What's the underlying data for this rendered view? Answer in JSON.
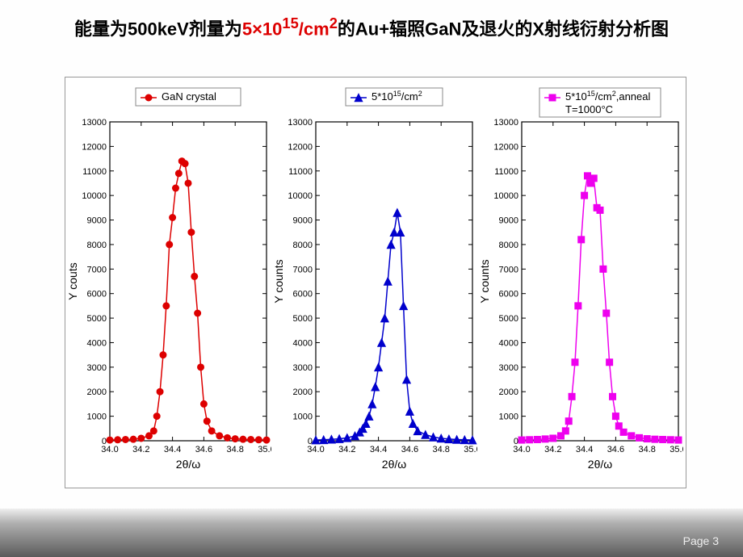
{
  "title": {
    "parts": [
      {
        "t": "能量为500keV剂量为",
        "emph": false
      },
      {
        "t": "5×10",
        "emph": true
      },
      {
        "t": "15",
        "emph": true,
        "sup": true
      },
      {
        "t": "/cm",
        "emph": true
      },
      {
        "t": "2",
        "emph": true,
        "sup": true
      },
      {
        "t": "的Au+辐照GaN及退火的X射线衍射分析图",
        "emph": false
      }
    ]
  },
  "footer": {
    "page": "Page 3"
  },
  "chart": {
    "type": "line-scatter-multi",
    "panels": [
      {
        "legend": [
          "GaN crystal"
        ],
        "ylabel": "Y couts",
        "xlabel": "2θ/ω",
        "color": "#dd0000",
        "marker": "circle",
        "ylim": [
          0,
          13000
        ],
        "ystep": 1000,
        "xlim": [
          34.0,
          35.0
        ],
        "xstep": 0.2,
        "points": [
          [
            34.0,
            30
          ],
          [
            34.05,
            40
          ],
          [
            34.1,
            50
          ],
          [
            34.15,
            60
          ],
          [
            34.2,
            100
          ],
          [
            34.25,
            200
          ],
          [
            34.28,
            400
          ],
          [
            34.3,
            1000
          ],
          [
            34.32,
            2000
          ],
          [
            34.34,
            3500
          ],
          [
            34.36,
            5500
          ],
          [
            34.38,
            8000
          ],
          [
            34.4,
            9100
          ],
          [
            34.42,
            10300
          ],
          [
            34.44,
            10900
          ],
          [
            34.46,
            11400
          ],
          [
            34.48,
            11300
          ],
          [
            34.5,
            10500
          ],
          [
            34.52,
            8500
          ],
          [
            34.54,
            6700
          ],
          [
            34.56,
            5200
          ],
          [
            34.58,
            3000
          ],
          [
            34.6,
            1500
          ],
          [
            34.62,
            800
          ],
          [
            34.65,
            400
          ],
          [
            34.7,
            200
          ],
          [
            34.75,
            120
          ],
          [
            34.8,
            80
          ],
          [
            34.85,
            60
          ],
          [
            34.9,
            50
          ],
          [
            34.95,
            40
          ],
          [
            35.0,
            30
          ]
        ]
      },
      {
        "legend": [
          "5*10<sup>15</sup>/cm<sup>2</sup>"
        ],
        "ylabel": "Y counts",
        "xlabel": "2θ/ω",
        "color": "#0000cc",
        "marker": "triangle",
        "ylim": [
          0,
          13000
        ],
        "ystep": 1000,
        "xlim": [
          34.0,
          35.0
        ],
        "xstep": 0.2,
        "points": [
          [
            34.0,
            30
          ],
          [
            34.05,
            40
          ],
          [
            34.1,
            60
          ],
          [
            34.15,
            80
          ],
          [
            34.2,
            120
          ],
          [
            34.25,
            200
          ],
          [
            34.28,
            350
          ],
          [
            34.3,
            500
          ],
          [
            34.32,
            700
          ],
          [
            34.34,
            1000
          ],
          [
            34.36,
            1500
          ],
          [
            34.38,
            2200
          ],
          [
            34.4,
            3000
          ],
          [
            34.42,
            4000
          ],
          [
            34.44,
            5000
          ],
          [
            34.46,
            6500
          ],
          [
            34.48,
            8000
          ],
          [
            34.5,
            8500
          ],
          [
            34.52,
            9300
          ],
          [
            34.54,
            8500
          ],
          [
            34.56,
            5500
          ],
          [
            34.58,
            2500
          ],
          [
            34.6,
            1200
          ],
          [
            34.62,
            700
          ],
          [
            34.65,
            400
          ],
          [
            34.7,
            250
          ],
          [
            34.75,
            150
          ],
          [
            34.8,
            100
          ],
          [
            34.85,
            70
          ],
          [
            34.9,
            50
          ],
          [
            34.95,
            40
          ],
          [
            35.0,
            30
          ]
        ]
      },
      {
        "legend": [
          "5*10<sup>15</sup>/cm<sup>2</sup>,anneal",
          "T=1000°C"
        ],
        "ylabel": "Y counts",
        "xlabel": "2θ/ω",
        "color": "#ee00ee",
        "marker": "square",
        "ylim": [
          0,
          13000
        ],
        "ystep": 1000,
        "xlim": [
          34.0,
          35.0
        ],
        "xstep": 0.2,
        "points": [
          [
            34.0,
            30
          ],
          [
            34.05,
            40
          ],
          [
            34.1,
            50
          ],
          [
            34.15,
            70
          ],
          [
            34.2,
            100
          ],
          [
            34.25,
            200
          ],
          [
            34.28,
            400
          ],
          [
            34.3,
            800
          ],
          [
            34.32,
            1800
          ],
          [
            34.34,
            3200
          ],
          [
            34.36,
            5500
          ],
          [
            34.38,
            8200
          ],
          [
            34.4,
            10000
          ],
          [
            34.42,
            10800
          ],
          [
            34.44,
            10500
          ],
          [
            34.46,
            10700
          ],
          [
            34.48,
            9500
          ],
          [
            34.5,
            9400
          ],
          [
            34.52,
            7000
          ],
          [
            34.54,
            5200
          ],
          [
            34.56,
            3200
          ],
          [
            34.58,
            1800
          ],
          [
            34.6,
            1000
          ],
          [
            34.62,
            600
          ],
          [
            34.65,
            350
          ],
          [
            34.7,
            200
          ],
          [
            34.75,
            120
          ],
          [
            34.8,
            80
          ],
          [
            34.85,
            60
          ],
          [
            34.9,
            50
          ],
          [
            34.95,
            40
          ],
          [
            35.0,
            30
          ]
        ]
      }
    ],
    "plot_bg": "#ffffff",
    "frame_color": "#000000",
    "tick_fontsize": 11,
    "label_fontsize": 14,
    "legend_fontsize": 13,
    "line_width": 1.5,
    "marker_size": 4
  }
}
